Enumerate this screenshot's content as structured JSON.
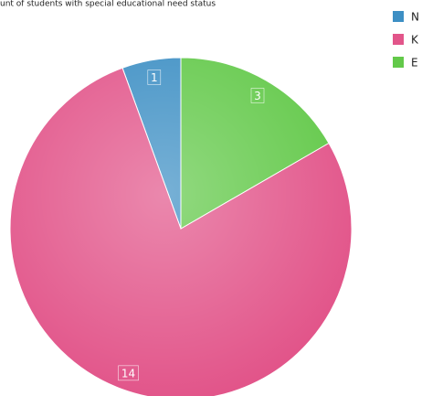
{
  "chart_data": {
    "type": "pie",
    "title": "unt of students with special educational need status",
    "categories": [
      "N",
      "K",
      "E"
    ],
    "values": [
      1,
      14,
      3
    ],
    "colors": [
      "#3d8fc4",
      "#e2558a",
      "#63c94a"
    ],
    "legend": "top-right"
  }
}
